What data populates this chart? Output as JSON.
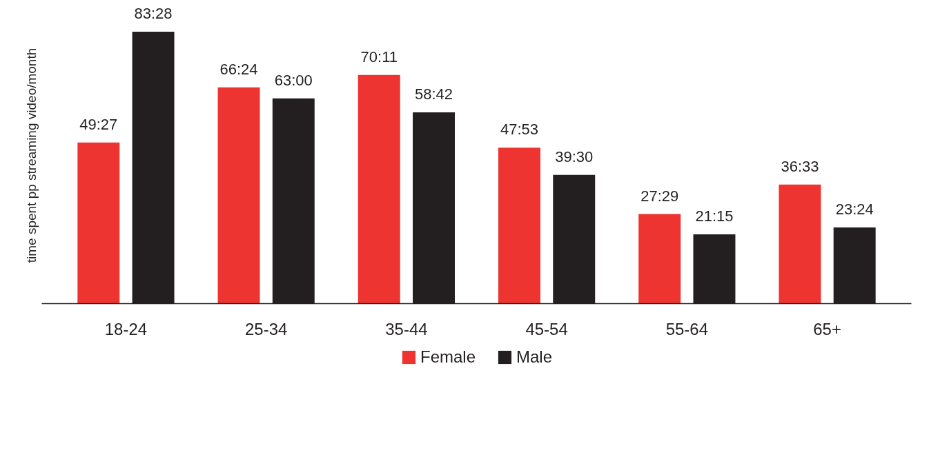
{
  "chart_data": {
    "type": "bar",
    "ylabel": "time spent pp streaming video/month",
    "categories": [
      "18-24",
      "25-34",
      "35-44",
      "45-54",
      "55-64",
      "65+"
    ],
    "series": [
      {
        "name": "Female",
        "color": "#ee3430",
        "values": [
          49.45,
          66.4,
          70.18,
          47.88,
          27.48,
          36.55
        ],
        "value_labels": [
          "49:27",
          "66:24",
          "70:11",
          "47:53",
          "27:29",
          "36:33"
        ]
      },
      {
        "name": "Male",
        "color": "#231f20",
        "values": [
          83.47,
          63,
          58.7,
          39.5,
          21.25,
          23.4
        ],
        "value_labels": [
          "83:28",
          "63:00",
          "58:42",
          "39:30",
          "21:15",
          "23:24"
        ]
      }
    ],
    "legend": "bottom",
    "grid": false
  }
}
